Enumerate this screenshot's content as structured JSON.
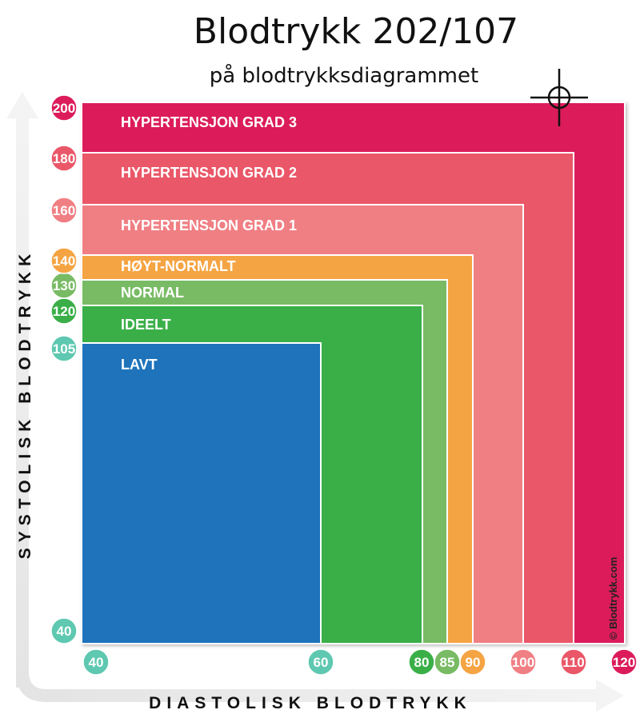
{
  "title": "Blodtrykk 202/107",
  "subtitle": "på blodtrykksdiagrammet",
  "credit": "© Blodtrykk.com",
  "chart_data": {
    "type": "area",
    "xlabel": "DIASTOLISK BLODTRYKK",
    "ylabel": "SYSTOLISK BLODTRYKK",
    "x_ticks": [
      {
        "value": 40,
        "label": "40",
        "color": "#5ec8b0"
      },
      {
        "value": 60,
        "label": "60",
        "color": "#5ec8b0"
      },
      {
        "value": 80,
        "label": "80",
        "color": "#3aaf48"
      },
      {
        "value": 85,
        "label": "85",
        "color": "#78bb64"
      },
      {
        "value": 90,
        "label": "90",
        "color": "#f5a443"
      },
      {
        "value": 100,
        "label": "100",
        "color": "#f07f84"
      },
      {
        "value": 110,
        "label": "110",
        "color": "#ea5768"
      },
      {
        "value": 120,
        "label": "120",
        "color": "#dc1c5a"
      }
    ],
    "y_ticks": [
      {
        "value": 40,
        "label": "40",
        "color": "#5ec8b0"
      },
      {
        "value": 105,
        "label": "105",
        "color": "#5ec8b0"
      },
      {
        "value": 120,
        "label": "120",
        "color": "#3aaf48"
      },
      {
        "value": 130,
        "label": "130",
        "color": "#78bb64"
      },
      {
        "value": 140,
        "label": "140",
        "color": "#f5a443"
      },
      {
        "value": 160,
        "label": "160",
        "color": "#f07f84"
      },
      {
        "value": 180,
        "label": "180",
        "color": "#ea5768"
      },
      {
        "value": 200,
        "label": "200",
        "color": "#dc1c5a"
      }
    ],
    "zones": [
      {
        "name": "HYPERTENSJON GRAD 3",
        "max_diastolic": 120,
        "max_systolic": 200,
        "color": "#dc1c5a"
      },
      {
        "name": "HYPERTENSJON GRAD 2",
        "max_diastolic": 110,
        "max_systolic": 180,
        "color": "#ea5768"
      },
      {
        "name": "HYPERTENSJON GRAD 1",
        "max_diastolic": 100,
        "max_systolic": 160,
        "color": "#f07f84"
      },
      {
        "name": "HØYT-NORMALT",
        "max_diastolic": 90,
        "max_systolic": 140,
        "color": "#f5a443"
      },
      {
        "name": "NORMAL",
        "max_diastolic": 85,
        "max_systolic": 130,
        "color": "#78bb64"
      },
      {
        "name": "IDEELT",
        "max_diastolic": 80,
        "max_systolic": 120,
        "color": "#3aaf48"
      },
      {
        "name": "LAVT",
        "max_diastolic": 60,
        "max_systolic": 105,
        "color": "#1e73bb"
      }
    ],
    "marker": {
      "diastolic": 107,
      "systolic": 202,
      "shape": "crosshair"
    }
  }
}
